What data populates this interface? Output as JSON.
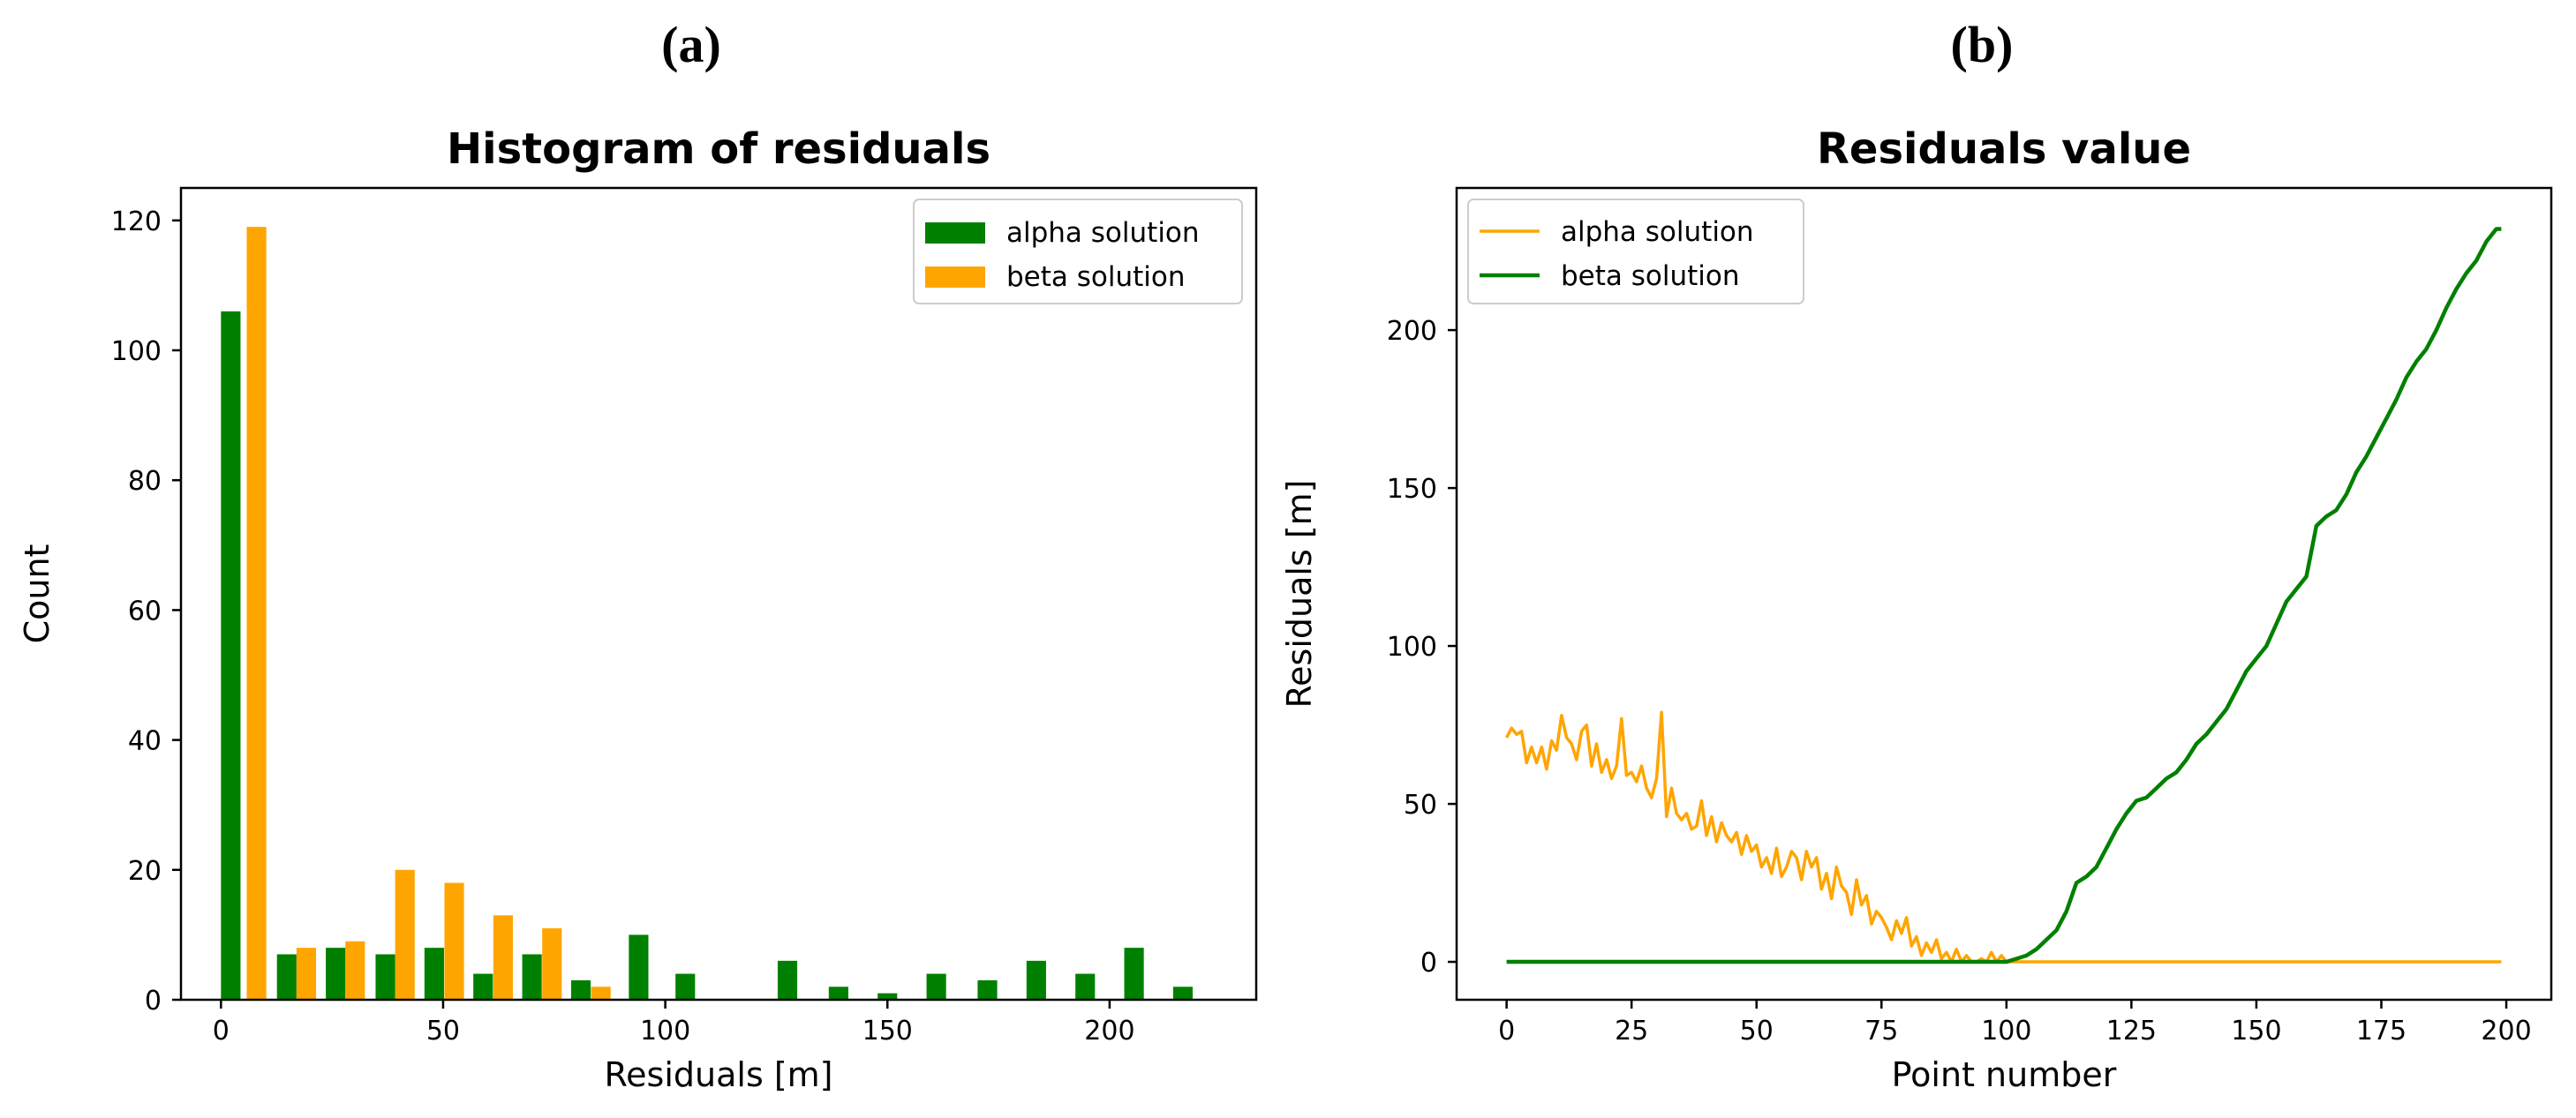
{
  "panel_labels": [
    "(a)",
    "(b)"
  ],
  "colors": {
    "alpha": "#008000",
    "beta": "#FFA500"
  },
  "chart_data": [
    {
      "type": "bar",
      "title": "Histogram of residuals",
      "xlabel": "Residuals [m]",
      "ylabel": "Count",
      "xlim": [
        -9,
        233
      ],
      "ylim": [
        0,
        125
      ],
      "xticks": [
        0,
        50,
        100,
        150,
        200
      ],
      "yticks": [
        0,
        20,
        40,
        60,
        80,
        100,
        120
      ],
      "bar_width": 4.4,
      "legend_position": "upper right",
      "series": [
        {
          "name": "alpha solution",
          "color": "#008000",
          "x": [
            2.2,
            14.8,
            25.8,
            37.0,
            48.0,
            59.0,
            70.0,
            81.0,
            94.0,
            104.5,
            127.5,
            139.0,
            150.0,
            161.0,
            172.5,
            183.5,
            194.5,
            205.5,
            216.5
          ],
          "values": [
            106,
            7,
            8,
            7,
            8,
            4,
            7,
            3,
            10,
            4,
            6,
            2,
            1,
            4,
            3,
            6,
            4,
            8,
            2
          ]
        },
        {
          "name": "beta solution",
          "color": "#FFA500",
          "x": [
            8.0,
            19.2,
            30.2,
            41.4,
            52.5,
            63.5,
            74.5,
            85.5
          ],
          "values": [
            119,
            8,
            9,
            20,
            18,
            13,
            11,
            2
          ]
        }
      ]
    },
    {
      "type": "line",
      "title": "Residuals value",
      "xlabel": "Point number",
      "ylabel": "Residuals [m]",
      "xlim": [
        -10,
        209
      ],
      "ylim": [
        -12,
        245
      ],
      "xticks": [
        0,
        25,
        50,
        75,
        100,
        125,
        150,
        175,
        200
      ],
      "yticks": [
        0,
        50,
        100,
        150,
        200
      ],
      "legend_position": "upper left",
      "series": [
        {
          "name": "alpha solution",
          "color": "#FFA500",
          "x": [
            0,
            1,
            2,
            3,
            4,
            5,
            6,
            7,
            8,
            9,
            10,
            11,
            12,
            13,
            14,
            15,
            16,
            17,
            18,
            19,
            20,
            21,
            22,
            23,
            24,
            25,
            26,
            27,
            28,
            29,
            30,
            31,
            32,
            33,
            34,
            35,
            36,
            37,
            38,
            39,
            40,
            41,
            42,
            43,
            44,
            45,
            46,
            47,
            48,
            49,
            50,
            51,
            52,
            53,
            54,
            55,
            56,
            57,
            58,
            59,
            60,
            61,
            62,
            63,
            64,
            65,
            66,
            67,
            68,
            69,
            70,
            71,
            72,
            73,
            74,
            75,
            76,
            77,
            78,
            79,
            80,
            81,
            82,
            83,
            84,
            85,
            86,
            87,
            88,
            89,
            90,
            91,
            92,
            93,
            94,
            95,
            96,
            97,
            98,
            99,
            100,
            199
          ],
          "values": [
            71,
            74,
            72,
            73,
            63,
            68,
            63,
            68,
            61,
            70,
            67,
            78,
            71,
            69,
            64,
            73,
            75,
            62,
            69,
            60,
            64,
            58,
            62,
            77,
            59,
            60,
            57,
            62,
            55,
            52,
            58,
            79,
            46,
            55,
            47,
            45,
            47,
            42,
            43,
            51,
            40,
            46,
            38,
            44,
            40,
            38,
            41,
            34,
            40,
            35,
            37,
            30,
            33,
            28,
            36,
            27,
            30,
            35,
            33,
            26,
            35,
            30,
            33,
            23,
            28,
            20,
            30,
            24,
            22,
            15,
            26,
            18,
            21,
            12,
            16,
            14,
            11,
            7,
            13,
            9,
            14,
            5,
            8,
            2,
            6,
            3,
            7,
            1,
            3,
            0,
            4,
            0,
            2,
            0,
            0,
            1,
            0,
            3,
            0,
            2,
            0,
            0
          ]
        },
        {
          "name": "beta solution",
          "color": "#008000",
          "x": [
            0,
            100,
            102,
            104,
            106,
            108,
            110,
            112,
            114,
            116,
            118,
            120,
            122,
            124,
            126,
            128,
            130,
            132,
            134,
            136,
            138,
            140,
            142,
            144,
            146,
            148,
            150,
            152,
            154,
            156,
            158,
            160,
            162,
            164,
            166,
            168,
            170,
            172,
            174,
            176,
            178,
            180,
            182,
            184,
            186,
            188,
            190,
            192,
            194,
            196,
            198,
            199
          ],
          "values": [
            0,
            0,
            1,
            2,
            4,
            7,
            10,
            16,
            25,
            27,
            30,
            36,
            42,
            47,
            51,
            52,
            55,
            58,
            60,
            64,
            69,
            72,
            76,
            80,
            86,
            92,
            96,
            100,
            107,
            114,
            118,
            122,
            138,
            141,
            143,
            148,
            155,
            160,
            166,
            172,
            178,
            185,
            190,
            194,
            200,
            207,
            213,
            218,
            222,
            228,
            232,
            232
          ]
        }
      ]
    }
  ]
}
